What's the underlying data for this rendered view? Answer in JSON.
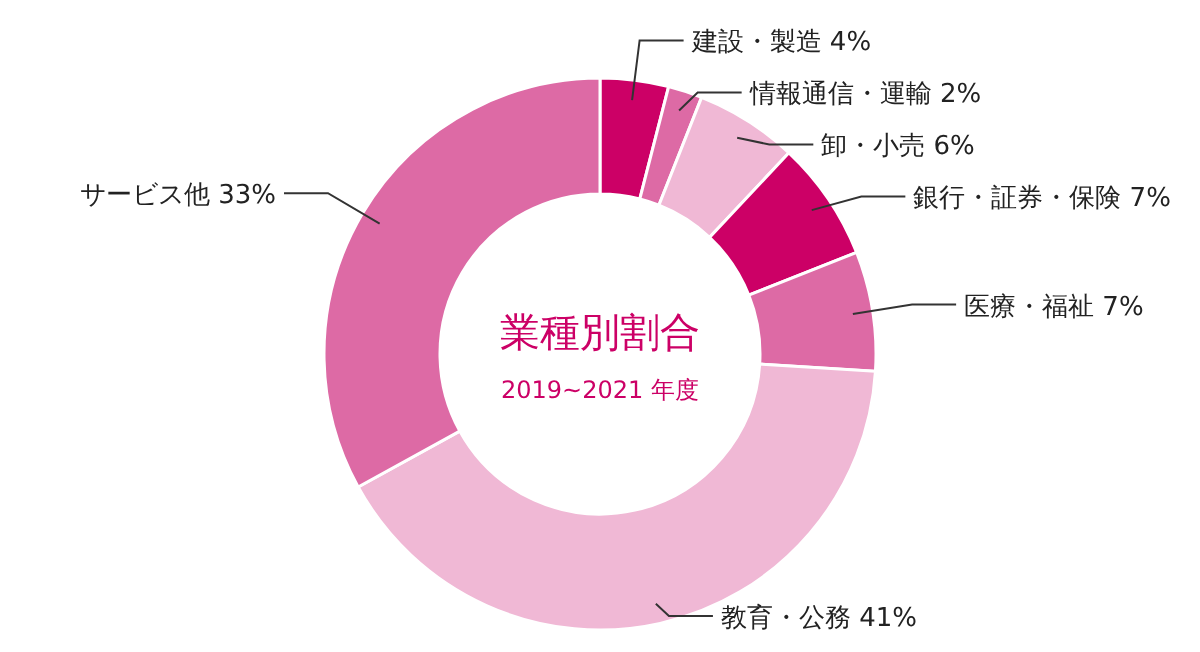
{
  "chart_data": {
    "type": "donut",
    "title": "業種別割合",
    "subtitle": "2019~2021 年度",
    "categories": [
      "建設・製造",
      "情報通信・運輸",
      "卸・小売",
      "銀行・証券・保険",
      "医療・福祉",
      "教育・公務",
      "サービス他"
    ],
    "values": [
      4,
      2,
      6,
      7,
      7,
      41,
      33
    ],
    "value_labels": [
      "4%",
      "2%",
      "6%",
      "7%",
      "7%",
      "41%",
      "33%"
    ],
    "colors": [
      "#cc0066",
      "#dd6aa5",
      "#f0b8d5",
      "#cc0066",
      "#dd6aa5",
      "#f0b8d5",
      "#dd6aa5"
    ]
  }
}
